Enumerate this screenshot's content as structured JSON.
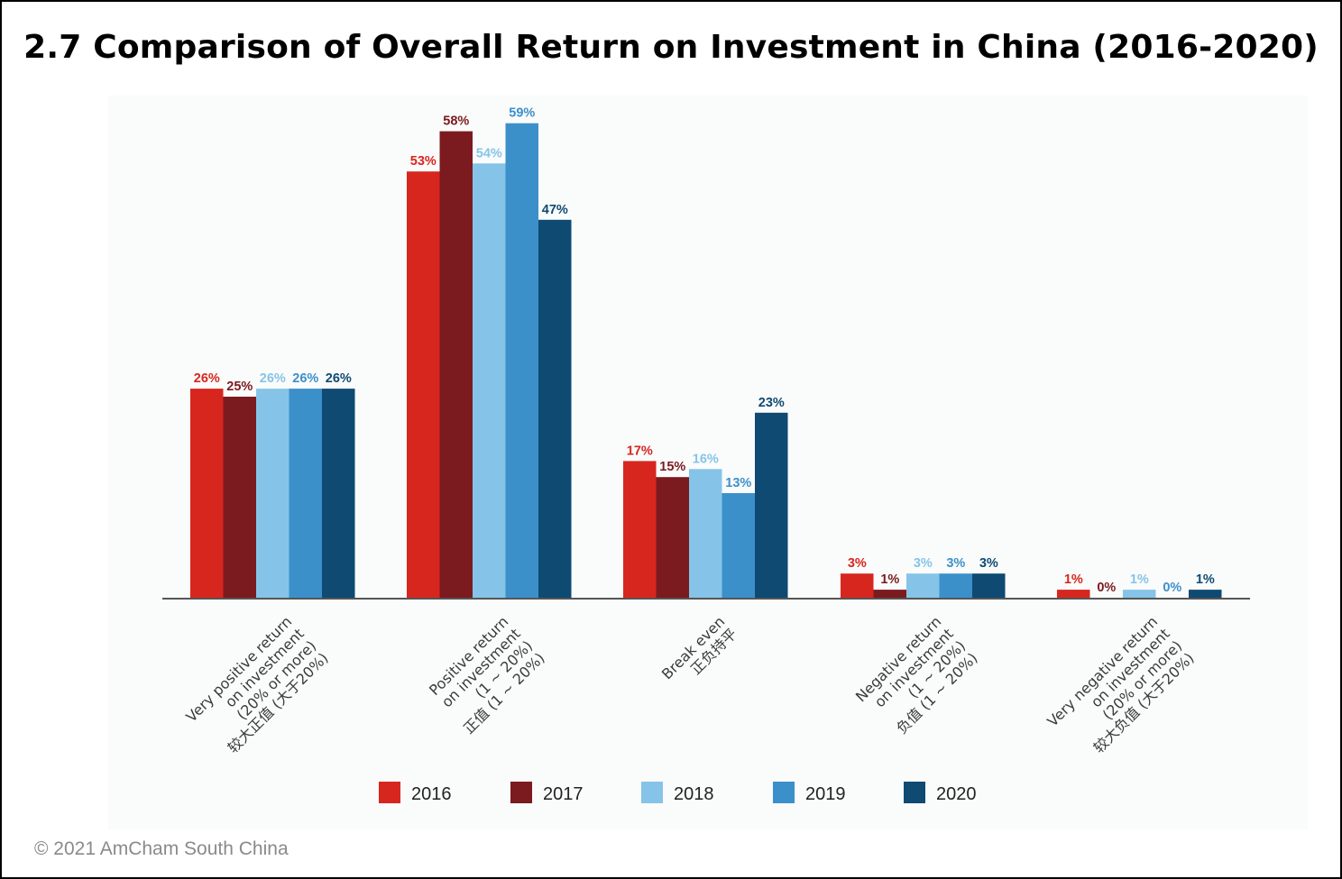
{
  "title": "2.7 Comparison of Overall Return on Investment in China (2016-2020)",
  "footer": {
    "copyright": "© 2021 AmCham South China"
  },
  "chart_data": {
    "type": "bar",
    "title": "2.7 Comparison of Overall Return on Investment in China (2016-2020)",
    "ylim": [
      0,
      62
    ],
    "grid": false,
    "legend_position": "bottom",
    "categories": [
      [
        "Very positive return",
        "on investment",
        "(20% or more)",
        "较大正值 (大于20%)"
      ],
      [
        "Positive return",
        "on investment",
        "(1 ~ 20%)",
        "正值 (1 ~ 20%)"
      ],
      [
        "Break even",
        "正负持平"
      ],
      [
        "Negative return",
        "on investment",
        "(1 ~ 20%)",
        "负值 (1 ~ 20%)"
      ],
      [
        "Very negative return",
        "on investment",
        "(20% or more)",
        "较大负值 (大于20%)"
      ]
    ],
    "series": [
      {
        "name": "2016",
        "color": "#d7261e",
        "values": [
          26,
          53,
          17,
          3,
          1
        ],
        "labels": [
          "26%",
          "53%",
          "17%",
          "3%",
          "1%"
        ]
      },
      {
        "name": "2017",
        "color": "#7b1a1f",
        "values": [
          25,
          58,
          15,
          1,
          0
        ],
        "labels": [
          "25%",
          "58%",
          "15%",
          "1%",
          "0%"
        ]
      },
      {
        "name": "2018",
        "color": "#85c4e8",
        "values": [
          26,
          54,
          16,
          3,
          1
        ],
        "labels": [
          "26%",
          "54%",
          "16%",
          "3%",
          "1%"
        ]
      },
      {
        "name": "2019",
        "color": "#3c90ca",
        "values": [
          26,
          59,
          13,
          3,
          0
        ],
        "labels": [
          "26%",
          "59%",
          "13%",
          "3%",
          "0%"
        ]
      },
      {
        "name": "2020",
        "color": "#0e4a72",
        "values": [
          26,
          47,
          23,
          3,
          1
        ],
        "labels": [
          "26%",
          "47%",
          "23%",
          "3%",
          "1%"
        ]
      }
    ]
  }
}
